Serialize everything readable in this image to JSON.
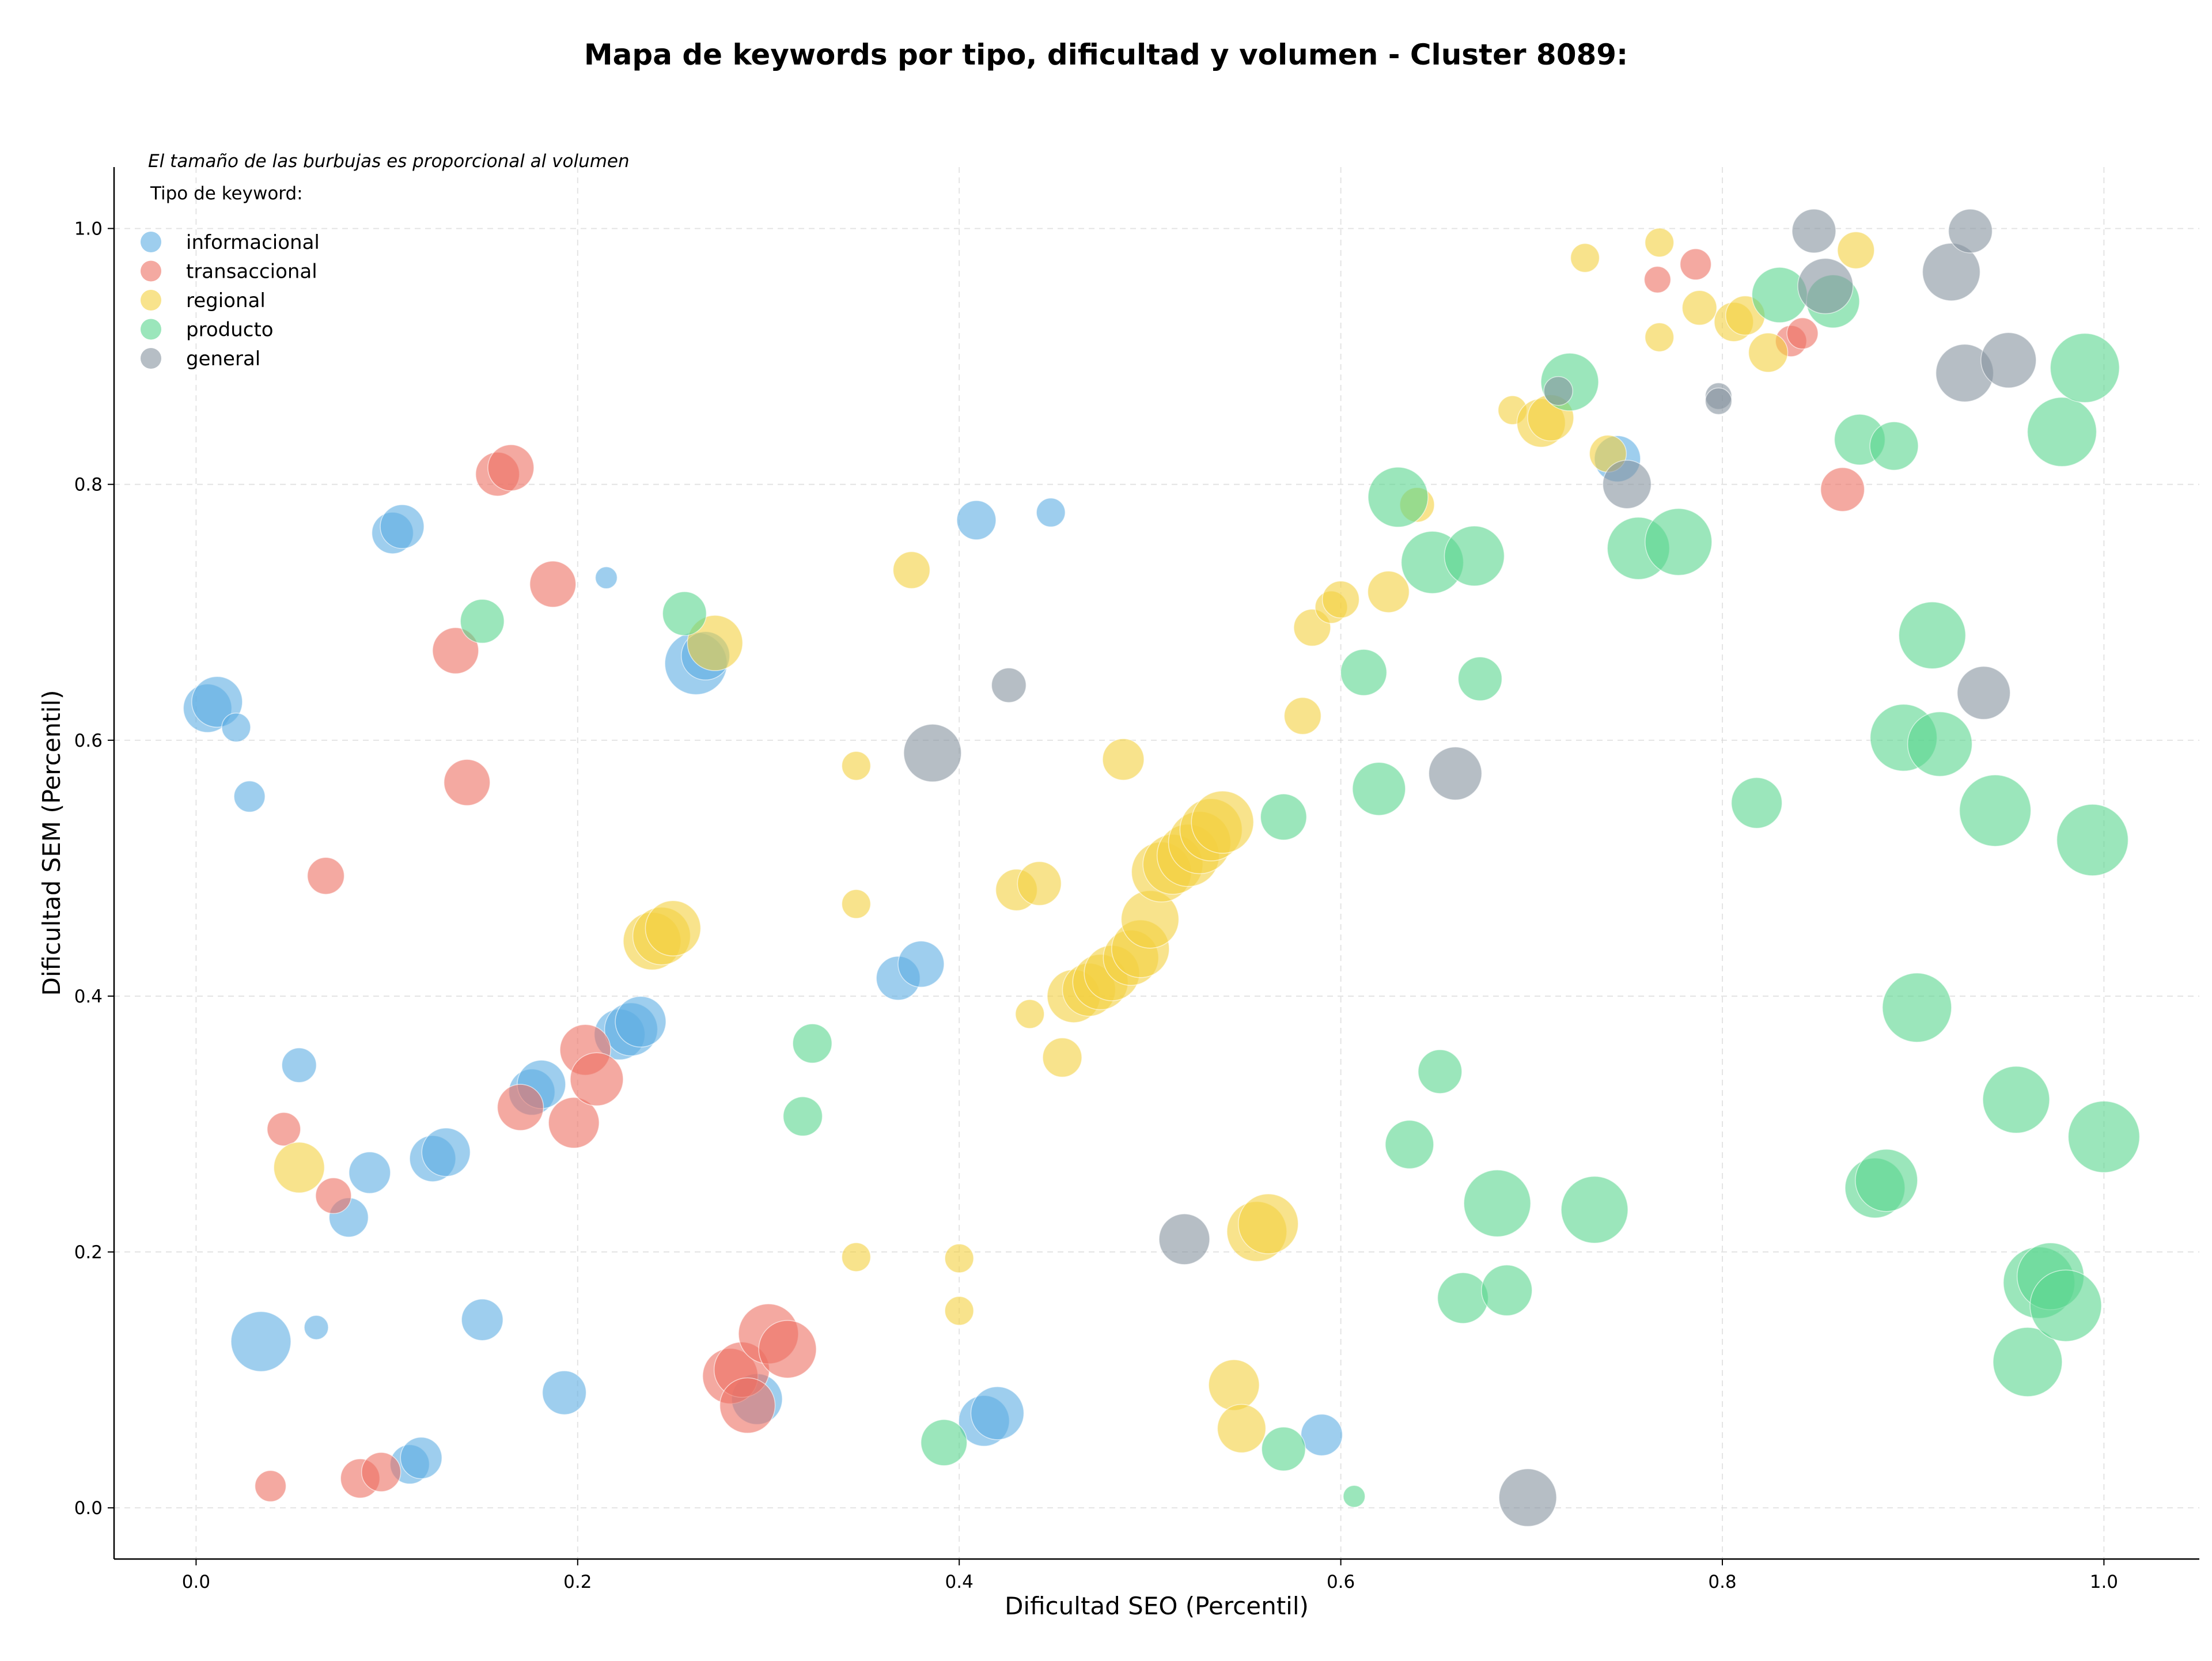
{
  "chart_data": {
    "type": "scatter",
    "title": "Mapa de keywords por tipo, dificultad y volumen - Cluster 8089:",
    "xlabel": "Dificultad SEO (Percentil)",
    "ylabel": "Dificultad SEM (Percentil)",
    "xlim": [
      -0.043,
      1.05
    ],
    "ylim": [
      -0.04,
      1.048
    ],
    "xticks": [
      "0.0",
      "0.2",
      "0.4",
      "0.6",
      "0.8",
      "1.0"
    ],
    "yticks": [
      "0.0",
      "0.2",
      "0.4",
      "0.6",
      "0.8",
      "1.0"
    ],
    "xtick_values": [
      0,
      0.2,
      0.4,
      0.6,
      0.8,
      1.0
    ],
    "ytick_values": [
      0,
      0.2,
      0.4,
      0.6,
      0.8,
      1.0
    ],
    "grid": true,
    "legend_position": "top-left",
    "note": "El tamaño de las burbujas es proporcional al volumen",
    "legend_title": "Tipo de keyword:",
    "series": [
      {
        "name": "informacional",
        "color": "#5dade2",
        "points": [
          [
            0.006,
            0.625,
            42
          ],
          [
            0.011,
            0.63,
            44
          ],
          [
            0.021,
            0.61,
            25
          ],
          [
            0.028,
            0.556,
            27
          ],
          [
            0.103,
            0.762,
            36
          ],
          [
            0.108,
            0.767,
            38
          ],
          [
            0.215,
            0.727,
            19
          ],
          [
            0.262,
            0.66,
            54
          ],
          [
            0.267,
            0.666,
            42
          ],
          [
            0.054,
            0.346,
            30
          ],
          [
            0.091,
            0.262,
            36
          ],
          [
            0.08,
            0.227,
            34
          ],
          [
            0.124,
            0.273,
            40
          ],
          [
            0.131,
            0.278,
            42
          ],
          [
            0.176,
            0.325,
            40
          ],
          [
            0.181,
            0.331,
            42
          ],
          [
            0.222,
            0.37,
            44
          ],
          [
            0.228,
            0.374,
            46
          ],
          [
            0.233,
            0.38,
            44
          ],
          [
            0.034,
            0.13,
            52
          ],
          [
            0.063,
            0.141,
            21
          ],
          [
            0.15,
            0.147,
            36
          ],
          [
            0.193,
            0.09,
            38
          ],
          [
            0.112,
            0.034,
            34
          ],
          [
            0.118,
            0.039,
            36
          ],
          [
            0.294,
            0.085,
            44
          ],
          [
            0.368,
            0.414,
            38
          ],
          [
            0.38,
            0.425,
            40
          ],
          [
            0.409,
            0.772,
            34
          ],
          [
            0.448,
            0.778,
            25
          ],
          [
            0.413,
            0.068,
            44
          ],
          [
            0.42,
            0.074,
            46
          ],
          [
            0.59,
            0.057,
            36
          ],
          [
            0.745,
            0.82,
            40
          ]
        ]
      },
      {
        "name": "transaccional",
        "color": "#ec7063",
        "points": [
          [
            0.158,
            0.808,
            38
          ],
          [
            0.165,
            0.813,
            40
          ],
          [
            0.187,
            0.722,
            40
          ],
          [
            0.136,
            0.67,
            40
          ],
          [
            0.142,
            0.567,
            40
          ],
          [
            0.068,
            0.494,
            32
          ],
          [
            0.046,
            0.296,
            29
          ],
          [
            0.072,
            0.244,
            31
          ],
          [
            0.17,
            0.313,
            40
          ],
          [
            0.198,
            0.301,
            44
          ],
          [
            0.204,
            0.358,
            44
          ],
          [
            0.21,
            0.335,
            46
          ],
          [
            0.039,
            0.017,
            27
          ],
          [
            0.086,
            0.023,
            34
          ],
          [
            0.097,
            0.028,
            34
          ],
          [
            0.28,
            0.103,
            48
          ],
          [
            0.286,
            0.108,
            48
          ],
          [
            0.289,
            0.08,
            48
          ],
          [
            0.3,
            0.136,
            52
          ],
          [
            0.31,
            0.124,
            50
          ],
          [
            0.766,
            0.96,
            23
          ],
          [
            0.786,
            0.972,
            27
          ],
          [
            0.836,
            0.912,
            27
          ],
          [
            0.842,
            0.918,
            27
          ],
          [
            0.863,
            0.796,
            38
          ]
        ]
      },
      {
        "name": "regional",
        "color": "#f4d03f",
        "points": [
          [
            0.054,
            0.266,
            44
          ],
          [
            0.239,
            0.443,
            50
          ],
          [
            0.244,
            0.447,
            50
          ],
          [
            0.25,
            0.453,
            48
          ],
          [
            0.272,
            0.676,
            48
          ],
          [
            0.346,
            0.58,
            25
          ],
          [
            0.346,
            0.472,
            25
          ],
          [
            0.346,
            0.196,
            25
          ],
          [
            0.375,
            0.733,
            32
          ],
          [
            0.4,
            0.195,
            25
          ],
          [
            0.4,
            0.154,
            25
          ],
          [
            0.43,
            0.483,
            36
          ],
          [
            0.437,
            0.386,
            25
          ],
          [
            0.442,
            0.488,
            38
          ],
          [
            0.454,
            0.352,
            34
          ],
          [
            0.46,
            0.4,
            46
          ],
          [
            0.468,
            0.405,
            46
          ],
          [
            0.474,
            0.411,
            48
          ],
          [
            0.48,
            0.418,
            48
          ],
          [
            0.486,
            0.585,
            36
          ],
          [
            0.49,
            0.43,
            48
          ],
          [
            0.495,
            0.437,
            50
          ],
          [
            0.5,
            0.46,
            50
          ],
          [
            0.506,
            0.497,
            52
          ],
          [
            0.512,
            0.503,
            52
          ],
          [
            0.52,
            0.51,
            54
          ],
          [
            0.526,
            0.52,
            54
          ],
          [
            0.532,
            0.53,
            54
          ],
          [
            0.538,
            0.536,
            54
          ],
          [
            0.544,
            0.096,
            44
          ],
          [
            0.548,
            0.062,
            42
          ],
          [
            0.556,
            0.216,
            52
          ],
          [
            0.562,
            0.222,
            52
          ],
          [
            0.58,
            0.619,
            32
          ],
          [
            0.585,
            0.688,
            32
          ],
          [
            0.595,
            0.704,
            28
          ],
          [
            0.6,
            0.71,
            32
          ],
          [
            0.625,
            0.716,
            36
          ],
          [
            0.64,
            0.784,
            30
          ],
          [
            0.69,
            0.858,
            25
          ],
          [
            0.705,
            0.848,
            42
          ],
          [
            0.71,
            0.852,
            40
          ],
          [
            0.728,
            0.977,
            25
          ],
          [
            0.74,
            0.824,
            32
          ],
          [
            0.767,
            0.989,
            25
          ],
          [
            0.767,
            0.915,
            25
          ],
          [
            0.788,
            0.938,
            30
          ],
          [
            0.806,
            0.927,
            34
          ],
          [
            0.812,
            0.932,
            34
          ],
          [
            0.824,
            0.903,
            34
          ],
          [
            0.87,
            0.983,
            32
          ]
        ]
      },
      {
        "name": "producto",
        "color": "#58d68d",
        "points": [
          [
            0.15,
            0.693,
            38
          ],
          [
            0.256,
            0.699,
            38
          ],
          [
            0.323,
            0.363,
            34
          ],
          [
            0.318,
            0.306,
            34
          ],
          [
            0.392,
            0.051,
            40
          ],
          [
            0.57,
            0.54,
            40
          ],
          [
            0.57,
            0.046,
            38
          ],
          [
            0.607,
            0.009,
            19
          ],
          [
            0.612,
            0.653,
            40
          ],
          [
            0.62,
            0.562,
            46
          ],
          [
            0.63,
            0.79,
            52
          ],
          [
            0.636,
            0.284,
            42
          ],
          [
            0.648,
            0.739,
            54
          ],
          [
            0.652,
            0.341,
            38
          ],
          [
            0.664,
            0.164,
            44
          ],
          [
            0.67,
            0.744,
            52
          ],
          [
            0.673,
            0.648,
            38
          ],
          [
            0.682,
            0.238,
            58
          ],
          [
            0.687,
            0.17,
            44
          ],
          [
            0.72,
            0.88,
            50
          ],
          [
            0.733,
            0.233,
            58
          ],
          [
            0.756,
            0.75,
            54
          ],
          [
            0.777,
            0.755,
            58
          ],
          [
            0.818,
            0.551,
            44
          ],
          [
            0.83,
            0.948,
            48
          ],
          [
            0.858,
            0.943,
            46
          ],
          [
            0.872,
            0.835,
            44
          ],
          [
            0.89,
            0.83,
            42
          ],
          [
            0.88,
            0.25,
            52
          ],
          [
            0.886,
            0.256,
            54
          ],
          [
            0.895,
            0.602,
            58
          ],
          [
            0.902,
            0.391,
            60
          ],
          [
            0.91,
            0.682,
            58
          ],
          [
            0.914,
            0.597,
            56
          ],
          [
            0.943,
            0.545,
            62
          ],
          [
            0.954,
            0.319,
            58
          ],
          [
            0.96,
            0.114,
            60
          ],
          [
            0.966,
            0.176,
            62
          ],
          [
            0.972,
            0.181,
            58
          ],
          [
            0.978,
            0.841,
            60
          ],
          [
            0.98,
            0.158,
            62
          ],
          [
            0.99,
            0.891,
            60
          ],
          [
            0.994,
            0.522,
            62
          ],
          [
            1.0,
            0.29,
            62
          ]
        ]
      },
      {
        "name": "general",
        "color": "#85929e",
        "points": [
          [
            0.386,
            0.59,
            50
          ],
          [
            0.426,
            0.643,
            30
          ],
          [
            0.518,
            0.21,
            44
          ],
          [
            0.66,
            0.574,
            46
          ],
          [
            0.698,
            0.008,
            50
          ],
          [
            0.714,
            0.873,
            25
          ],
          [
            0.75,
            0.8,
            42
          ],
          [
            0.798,
            0.869,
            23
          ],
          [
            0.798,
            0.865,
            23
          ],
          [
            0.848,
            0.998,
            38
          ],
          [
            0.854,
            0.955,
            48
          ],
          [
            0.92,
            0.966,
            50
          ],
          [
            0.93,
            0.998,
            38
          ],
          [
            0.927,
            0.887,
            50
          ],
          [
            0.95,
            0.897,
            48
          ],
          [
            0.937,
            0.637,
            46
          ]
        ]
      }
    ]
  }
}
